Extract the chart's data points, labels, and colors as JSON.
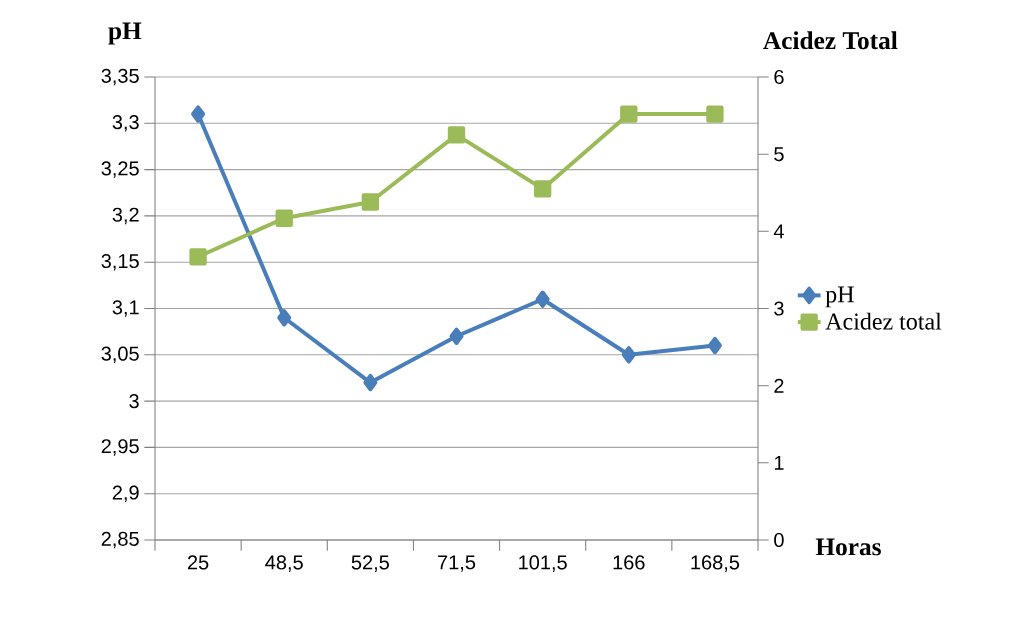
{
  "chart_data": {
    "type": "line",
    "ylabel": "pH",
    "y2label": "Acidez Total",
    "xlabel": "Horas",
    "categories": [
      "25",
      "48,5",
      "52,5",
      "71,5",
      "101,5",
      "166",
      "168,5"
    ],
    "series": [
      {
        "name": "pH",
        "color": "#4a7ebb",
        "marker": "diamond",
        "values": [
          3.31,
          3.09,
          3.02,
          3.07,
          3.11,
          3.05,
          3.06
        ]
      },
      {
        "name": "Acidez total",
        "color": "#9bbb59",
        "marker": "square",
        "axis": "y2",
        "values": [
          3.67,
          4.17,
          4.38,
          5.25,
          4.55,
          5.52,
          5.52
        ]
      }
    ],
    "ylim": [
      2.85,
      3.35
    ],
    "yticks": [
      {
        "value": 2.85,
        "label": "2,85"
      },
      {
        "value": 2.9,
        "label": "2,9"
      },
      {
        "value": 2.95,
        "label": "2,95"
      },
      {
        "value": 3,
        "label": "3"
      },
      {
        "value": 3.05,
        "label": "3,05"
      },
      {
        "value": 3.1,
        "label": "3,1"
      },
      {
        "value": 3.15,
        "label": "3,15"
      },
      {
        "value": 3.2,
        "label": "3,2"
      },
      {
        "value": 3.25,
        "label": "3,25"
      },
      {
        "value": 3.3,
        "label": "3,3"
      },
      {
        "value": 3.35,
        "label": "3,35"
      }
    ],
    "y2lim": [
      0,
      6
    ],
    "y2ticks": [
      0,
      1,
      2,
      3,
      4,
      5,
      6
    ],
    "grid": "y",
    "legend": "right",
    "line_style": "solid"
  }
}
